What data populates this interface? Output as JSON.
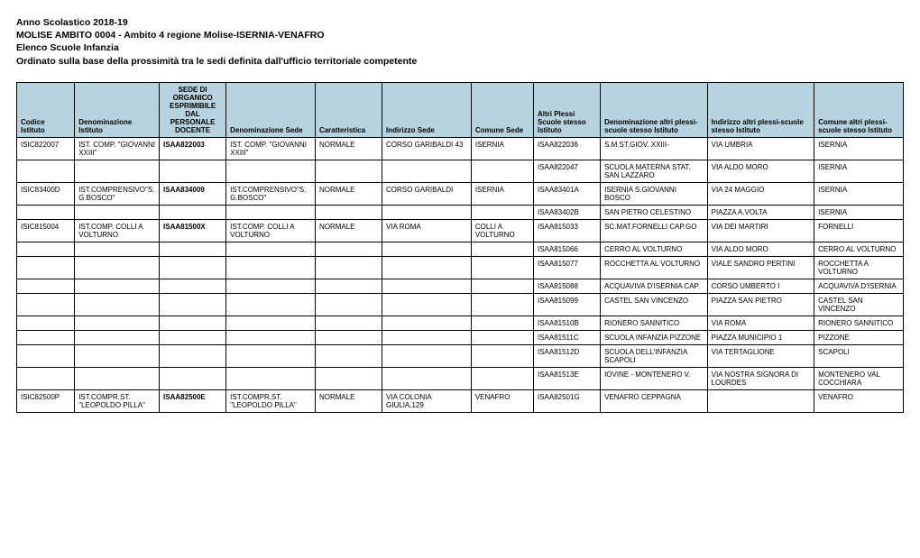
{
  "header": {
    "line1": "Anno Scolastico 2018-19",
    "line2": "MOLISE AMBITO 0004 - Ambito 4 regione Molise-ISERNIA-VENAFRO",
    "line3": "Elenco Scuole Infanzia",
    "line4": "Ordinato sulla base della prossimità tra le sedi definita dall'ufficio territoriale competente"
  },
  "columns": {
    "c0": "Codice Istituto",
    "c1": "Denominazione Istituto",
    "c2": "SEDE DI ORGANICO ESPRIMIBILE DAL PERSONALE DOCENTE",
    "c3": "Denominazione Sede",
    "c4": "Caratteristica",
    "c5": "Indirizzo Sede",
    "c6": "Comune Sede",
    "c7": "Altri Plessi Scuole stesso Istituto",
    "c8": "Denominazione altri plessi-scuole stesso Istituto",
    "c9": "Indirizzo altri plessi-scuole stesso Istituto",
    "c10": "Comune altri plessi-scuole stesso Istituto"
  },
  "rows": [
    {
      "c0": "ISIC822007",
      "c1": "IST. COMP. \"GIOVANNI XXIII\"",
      "c2": "ISAA822003",
      "c3": "IST. COMP. \"GIOVANNI XXIII\"",
      "c4": "NORMALE",
      "c5": "CORSO GARIBALDI 43",
      "c6": "ISERNIA",
      "c7": "ISAA822036",
      "c8": "S.M.ST.GIOV. XXIII-",
      "c9": "VIA UMBRIA",
      "c10": "ISERNIA"
    },
    {
      "c0": "",
      "c1": "",
      "c2": "",
      "c3": "",
      "c4": "",
      "c5": "",
      "c6": "",
      "c7": "ISAA822047",
      "c8": "SCUOLA MATERNA STAT. SAN LAZZARO",
      "c9": "VIA ALDO MORO",
      "c10": "ISERNIA"
    },
    {
      "c0": "ISIC83400D",
      "c1": "IST.COMPRENSIVO\"S.G.BOSCO\"",
      "c2": "ISAA834009",
      "c3": "IST.COMPRENSIVO\"S.G.BOSCO\"",
      "c4": "NORMALE",
      "c5": "CORSO GARIBALDI",
      "c6": "ISERNIA",
      "c7": "ISAA83401A",
      "c8": "ISERNIA S.GIOVANNI BOSCO",
      "c9": "VIA 24 MAGGIO",
      "c10": "ISERNIA"
    },
    {
      "c0": "",
      "c1": "",
      "c2": "",
      "c3": "",
      "c4": "",
      "c5": "",
      "c6": "",
      "c7": "ISAA83402B",
      "c8": "SAN PIETRO CELESTINO",
      "c9": "PIAZZA A.VOLTA",
      "c10": "ISERNIA"
    },
    {
      "c0": "ISIC815004",
      "c1": "IST.COMP. COLLI A VOLTURNO",
      "c2": "ISAA81500X",
      "c3": "IST.COMP. COLLI A VOLTURNO",
      "c4": "NORMALE",
      "c5": "VIA ROMA",
      "c6": "COLLI A VOLTURNO",
      "c7": "ISAA815033",
      "c8": "SC.MAT.FORNELLI CAP.GO",
      "c9": "VIA DEI MARTIRI",
      "c10": "FORNELLI"
    },
    {
      "c0": "",
      "c1": "",
      "c2": "",
      "c3": "",
      "c4": "",
      "c5": "",
      "c6": "",
      "c7": "ISAA815066",
      "c8": "CERRO AL VOLTURNO",
      "c9": "VIA ALDO MORO",
      "c10": "CERRO AL VOLTURNO"
    },
    {
      "c0": "",
      "c1": "",
      "c2": "",
      "c3": "",
      "c4": "",
      "c5": "",
      "c6": "",
      "c7": "ISAA815077",
      "c8": "ROCCHETTA AL VOLTURNO",
      "c9": "VIALE SANDRO PERTINI",
      "c10": "ROCCHETTA A VOLTURNO"
    },
    {
      "c0": "",
      "c1": "",
      "c2": "",
      "c3": "",
      "c4": "",
      "c5": "",
      "c6": "",
      "c7": "ISAA815088",
      "c8": "ACQUAVIVA D'ISERNIA CAP.",
      "c9": "CORSO UMBERTO I",
      "c10": "ACQUAVIVA D'ISERNIA"
    },
    {
      "c0": "",
      "c1": "",
      "c2": "",
      "c3": "",
      "c4": "",
      "c5": "",
      "c6": "",
      "c7": "ISAA815099",
      "c8": "CASTEL SAN VINCENZO",
      "c9": "PIAZZA SAN PIETRO",
      "c10": "CASTEL SAN VINCENZO"
    },
    {
      "c0": "",
      "c1": "",
      "c2": "",
      "c3": "",
      "c4": "",
      "c5": "",
      "c6": "",
      "c7": "ISAA81510B",
      "c8": "RIONERO SANNITICO",
      "c9": "VIA ROMA",
      "c10": "RIONERO SANNITICO"
    },
    {
      "c0": "",
      "c1": "",
      "c2": "",
      "c3": "",
      "c4": "",
      "c5": "",
      "c6": "",
      "c7": "ISAA81511C",
      "c8": "SCUOLA INFANZIA PIZZONE",
      "c9": "PIAZZA MUNICIPIO 1",
      "c10": "PIZZONE"
    },
    {
      "c0": "",
      "c1": "",
      "c2": "",
      "c3": "",
      "c4": "",
      "c5": "",
      "c6": "",
      "c7": "ISAA81512D",
      "c8": "SCUOLA DELL'INFANZIA SCAPOLI",
      "c9": "VIA TERTAGLIONE",
      "c10": "SCAPOLI"
    },
    {
      "c0": "",
      "c1": "",
      "c2": "",
      "c3": "",
      "c4": "",
      "c5": "",
      "c6": "",
      "c7": "ISAA81513E",
      "c8": "IOVINE - MONTENERO V.",
      "c9": "VIA NOSTRA SIGNORA DI LOURDES",
      "c10": "MONTENERO VAL COCCHIARA"
    },
    {
      "c0": "ISIC82500P",
      "c1": "IST.COMPR.ST. \"LEOPOLDO PILLA\"",
      "c2": "ISAA82500E",
      "c3": "IST.COMPR.ST. \"LEOPOLDO PILLA\"",
      "c4": "NORMALE",
      "c5": "VIA COLONIA GIULIA,129",
      "c6": "VENAFRO",
      "c7": "ISAA82501G",
      "c8": "VENAFRO CEPPAGNA",
      "c9": "",
      "c10": "VENAFRO"
    }
  ],
  "style": {
    "header_bg": "#b7d3df",
    "border_color": "#000000",
    "text_color": "#000000",
    "background": "#ffffff"
  }
}
